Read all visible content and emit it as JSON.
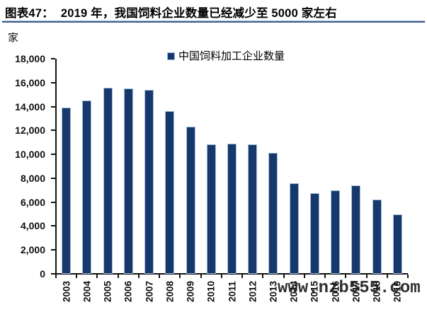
{
  "header": {
    "figure_label": "图表47：",
    "title": "2019 年，我国饲料企业数量已经减少至 5000 家左右"
  },
  "chart": {
    "unit_label": "家",
    "legend": {
      "label": "中国饲料加工企业数量",
      "marker_color": "#16386b"
    }
  },
  "watermark": {
    "text": "www.nzb555.com"
  },
  "colors": {
    "bar_fill": "#16386b",
    "bar_border": "#a3bedd",
    "axis": "#141414",
    "title_rule": "#41618e"
  },
  "chart_data": {
    "type": "bar",
    "title": "2019 年，我国饲料企业数量已经减少至 5000 家左右",
    "ylabel": "家",
    "xlabel": "",
    "categories": [
      "2003",
      "2004",
      "2005",
      "2006",
      "2007",
      "2008",
      "2009",
      "2010",
      "2011",
      "2012",
      "2013",
      "2014",
      "2015",
      "2016",
      "2017",
      "2018",
      "2019"
    ],
    "series": [
      {
        "name": "中国饲料加工企业数量",
        "values": [
          13900,
          14500,
          15550,
          15500,
          15400,
          13600,
          12300,
          10850,
          10900,
          10850,
          10100,
          7600,
          6750,
          7000,
          7400,
          6200,
          5000
        ]
      }
    ],
    "ylim": [
      0,
      18000
    ],
    "ytick_step": 2000,
    "grid": false,
    "legend_position": "top-center",
    "bar_color": "#16386b"
  }
}
